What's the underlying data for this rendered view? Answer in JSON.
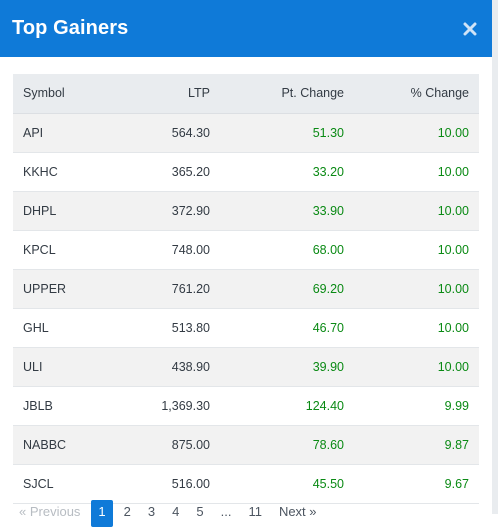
{
  "modal": {
    "title": "Top Gainers",
    "close_symbol": "×"
  },
  "table": {
    "headers": [
      "Symbol",
      "LTP",
      "Pt. Change",
      "% Change"
    ],
    "rows": [
      {
        "symbol": "API",
        "ltp": "564.30",
        "pt_change": "51.30",
        "pct_change": "10.00"
      },
      {
        "symbol": "KKHC",
        "ltp": "365.20",
        "pt_change": "33.20",
        "pct_change": "10.00"
      },
      {
        "symbol": "DHPL",
        "ltp": "372.90",
        "pt_change": "33.90",
        "pct_change": "10.00"
      },
      {
        "symbol": "KPCL",
        "ltp": "748.00",
        "pt_change": "68.00",
        "pct_change": "10.00"
      },
      {
        "symbol": "UPPER",
        "ltp": "761.20",
        "pt_change": "69.20",
        "pct_change": "10.00"
      },
      {
        "symbol": "GHL",
        "ltp": "513.80",
        "pt_change": "46.70",
        "pct_change": "10.00"
      },
      {
        "symbol": "ULI",
        "ltp": "438.90",
        "pt_change": "39.90",
        "pct_change": "10.00"
      },
      {
        "symbol": "JBLB",
        "ltp": "1,369.30",
        "pt_change": "124.40",
        "pct_change": "9.99"
      },
      {
        "symbol": "NABBC",
        "ltp": "875.00",
        "pt_change": "78.60",
        "pct_change": "9.87"
      },
      {
        "symbol": "SJCL",
        "ltp": "516.00",
        "pt_change": "45.50",
        "pct_change": "9.67"
      }
    ]
  },
  "pagination": {
    "previous": "« Previous",
    "pages": [
      "1",
      "2",
      "3",
      "4",
      "5",
      "...",
      "11"
    ],
    "active_page": "1",
    "next": "Next »"
  },
  "colors": {
    "header_bg": "#0f7ad8",
    "gain": "#0a8a14",
    "table_header_bg": "#e9ecef"
  }
}
